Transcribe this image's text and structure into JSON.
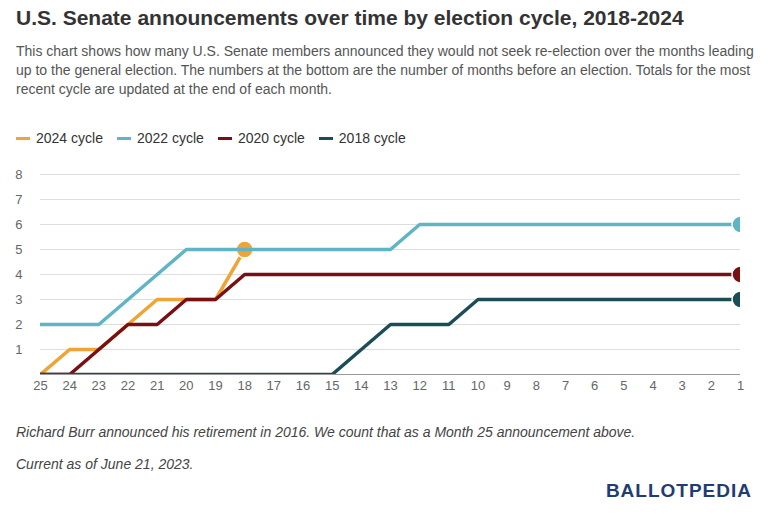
{
  "chart_data": {
    "type": "line",
    "title": "U.S. Senate announcements over time by election cycle, 2018-2024",
    "subtitle": "This chart shows how many U.S. Senate members announced they would not seek re-election over the months leading up to the general election. The numbers at the bottom are the number of months before an election. Totals for the most recent cycle are updated at the end of each month.",
    "notes": [
      "Richard Burr announced his retirement in 2016. We count that as a Month 25 announcement above.",
      "Current as of June 21, 2023."
    ],
    "source": "BALLOTPEDIA",
    "x": [
      25,
      24,
      23,
      22,
      21,
      20,
      19,
      18,
      17,
      16,
      15,
      14,
      13,
      12,
      11,
      10,
      9,
      8,
      7,
      6,
      5,
      4,
      3,
      2,
      1
    ],
    "xlim": [
      25,
      1
    ],
    "xticks": [
      25,
      24,
      23,
      22,
      21,
      20,
      19,
      18,
      17,
      16,
      15,
      14,
      13,
      12,
      11,
      10,
      9,
      8,
      7,
      6,
      5,
      4,
      3,
      2,
      1
    ],
    "ylim": [
      0,
      8
    ],
    "yticks": [
      1,
      2,
      3,
      4,
      5,
      6,
      7,
      8
    ],
    "grid": true,
    "legend": "top-left",
    "marker": "circle",
    "series": [
      {
        "name": "2024 cycle",
        "color": "#f0a435",
        "values": [
          0,
          1,
          1,
          2,
          3,
          3,
          3,
          5,
          null,
          null,
          null,
          null,
          null,
          null,
          null,
          null,
          null,
          null,
          null,
          null,
          null,
          null,
          null,
          null,
          null
        ]
      },
      {
        "name": "2022 cycle",
        "color": "#5fb4c6",
        "values": [
          2,
          2,
          2,
          3,
          4,
          5,
          5,
          5,
          5,
          5,
          5,
          5,
          5,
          6,
          6,
          6,
          6,
          6,
          6,
          6,
          6,
          6,
          6,
          6,
          6
        ]
      },
      {
        "name": "2020 cycle",
        "color": "#7a0f12",
        "values": [
          0,
          0,
          1,
          2,
          2,
          3,
          3,
          4,
          4,
          4,
          4,
          4,
          4,
          4,
          4,
          4,
          4,
          4,
          4,
          4,
          4,
          4,
          4,
          4,
          4
        ]
      },
      {
        "name": "2018 cycle",
        "color": "#1b4d57",
        "values": [
          0,
          0,
          0,
          0,
          0,
          0,
          0,
          0,
          0,
          0,
          0,
          1,
          2,
          2,
          2,
          3,
          3,
          3,
          3,
          3,
          3,
          3,
          3,
          3,
          3
        ]
      }
    ]
  }
}
